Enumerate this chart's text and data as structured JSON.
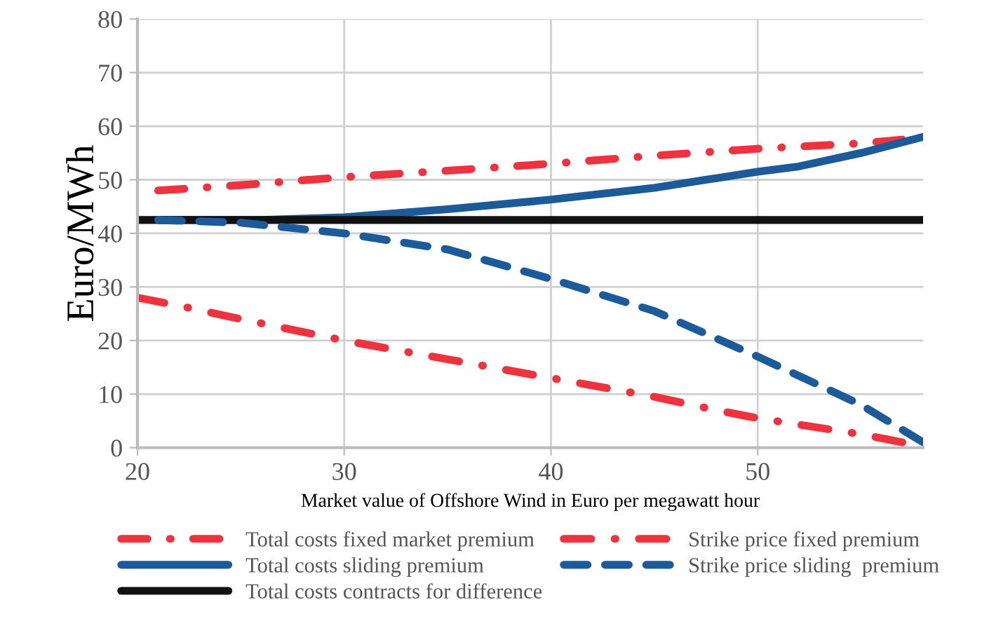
{
  "chart_data": {
    "type": "line",
    "ylabel": "Euro/MWh",
    "xlabel": "Market value of Offshore Wind in Euro per megawatt hour",
    "xlim": [
      20,
      58
    ],
    "xticks": [
      20,
      30,
      40,
      50
    ],
    "ylim": [
      0,
      80
    ],
    "yticks": [
      0,
      10,
      20,
      30,
      40,
      50,
      60,
      70,
      80
    ],
    "grid": true,
    "legend": "bottom",
    "marker": "none",
    "series": [
      {
        "name": "Total costs fixed market premium",
        "color": "#ee3340",
        "line_style": "dashdot",
        "x": [
          21,
          25,
          30,
          35,
          40,
          45,
          50,
          55,
          57
        ],
        "values": [
          48,
          49,
          50.5,
          51.7,
          53,
          54.5,
          55.8,
          56.8,
          57.5
        ]
      },
      {
        "name": "Total costs sliding premium",
        "color": "#1c5a9a",
        "line_style": "solid",
        "x": [
          21,
          26,
          30,
          35,
          40,
          45,
          50,
          52,
          55,
          58
        ],
        "values": [
          42.5,
          42.5,
          43,
          44.5,
          46.3,
          48.5,
          51.5,
          52.5,
          55,
          58
        ]
      },
      {
        "name": "Total costs contracts for difference",
        "color": "#111111",
        "line_style": "solid",
        "x": [
          20,
          58
        ],
        "values": [
          42.5,
          42.5
        ]
      },
      {
        "name": "Strike price fixed premium",
        "color": "#ee3340",
        "line_style": "dashdot",
        "x": [
          20,
          22,
          25,
          30,
          35,
          40,
          45,
          48,
          50,
          55,
          57
        ],
        "values": [
          28,
          26.5,
          24,
          20,
          16.5,
          13,
          9.5,
          7,
          5.5,
          2.5,
          1
        ]
      },
      {
        "name": "Strike price sliding  premium",
        "color": "#1c5a9a",
        "line_style": "dashed",
        "x": [
          21,
          25,
          30,
          35,
          40,
          45,
          50,
          55,
          58
        ],
        "values": [
          42.5,
          42,
          40,
          37,
          31.5,
          25.5,
          17,
          8,
          1
        ]
      }
    ]
  }
}
